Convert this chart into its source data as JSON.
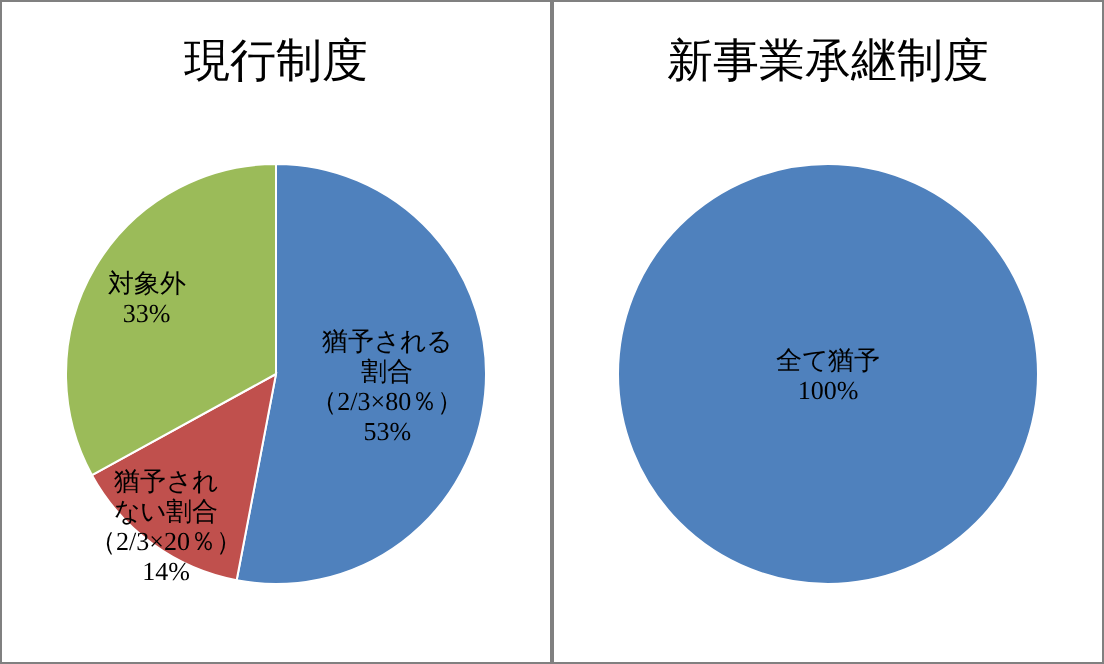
{
  "chart_data": [
    {
      "type": "pie",
      "title": "現行制度",
      "categories": [
        "猶予される割合（2/3×80％）",
        "猶予されない割合（2/3×20％）",
        "対象外"
      ],
      "values": [
        53,
        14,
        33
      ],
      "colors": [
        "#4f81bd",
        "#c0504d",
        "#9bbb59"
      ],
      "value_labels": [
        "53%",
        "14%",
        "33%"
      ]
    },
    {
      "type": "pie",
      "title": "新事業承継制度",
      "categories": [
        "全て猶予"
      ],
      "values": [
        100
      ],
      "colors": [
        "#4f81bd"
      ],
      "value_labels": [
        "100%"
      ]
    }
  ]
}
